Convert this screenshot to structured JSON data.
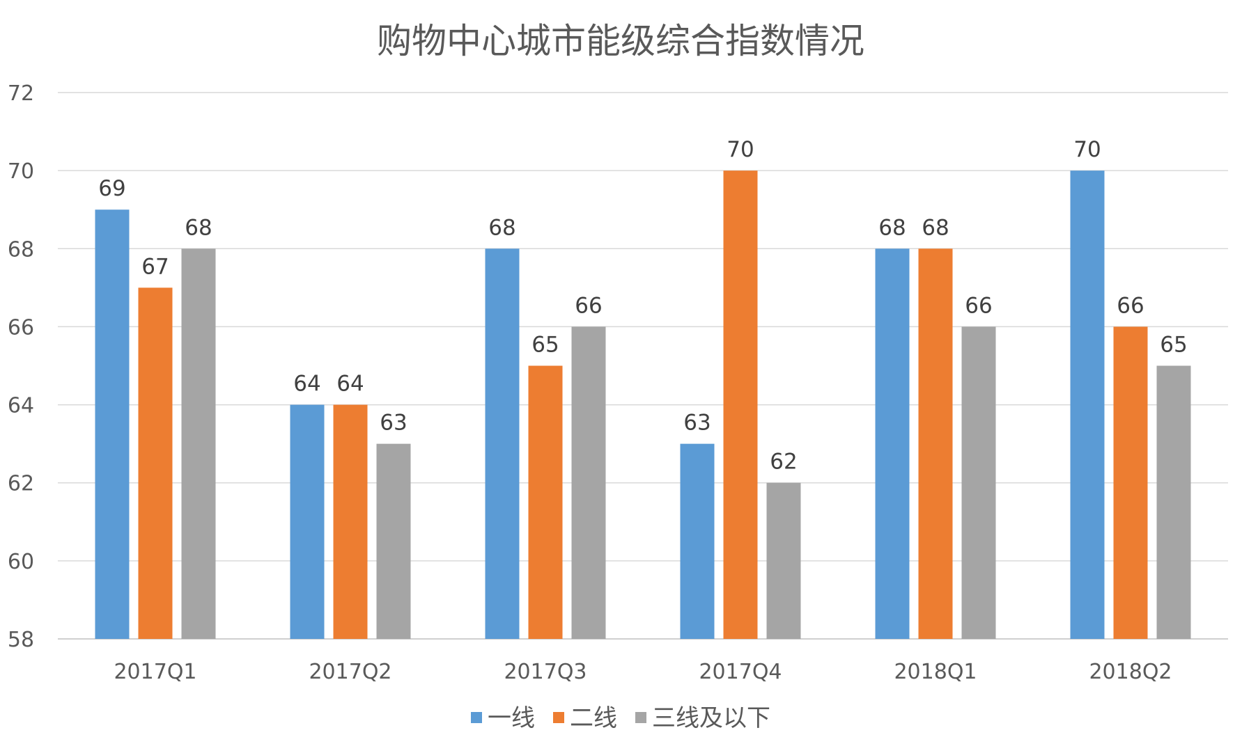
{
  "chart_data": {
    "type": "bar",
    "title": "购物中心城市能级综合指数情况",
    "xlabel": "",
    "ylabel": "",
    "categories": [
      "2017Q1",
      "2017Q2",
      "2017Q3",
      "2017Q4",
      "2018Q1",
      "2018Q2"
    ],
    "series": [
      {
        "name": "一线",
        "color": "#5B9BD5",
        "values": [
          69,
          64,
          68,
          63,
          68,
          70
        ]
      },
      {
        "name": "二线",
        "color": "#ED7D31",
        "values": [
          67,
          64,
          65,
          70,
          68,
          66
        ]
      },
      {
        "name": "三线及以下",
        "color": "#A5A5A5",
        "values": [
          68,
          63,
          66,
          62,
          66,
          65
        ]
      }
    ],
    "ylim": [
      58,
      72
    ],
    "yticks": [
      58,
      60,
      62,
      64,
      66,
      68,
      70,
      72
    ],
    "grid": true,
    "legend_position": "bottom",
    "data_labels": true
  }
}
